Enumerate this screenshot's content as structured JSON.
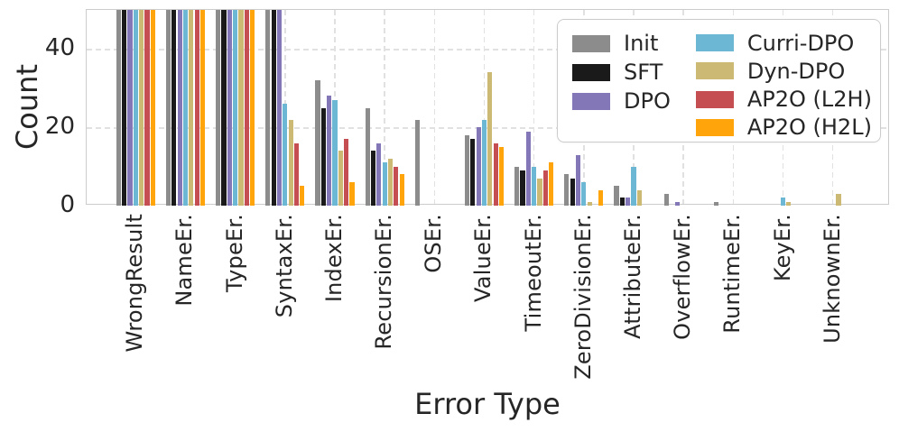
{
  "chart_data": {
    "type": "bar",
    "title": "",
    "xlabel": "Error Type",
    "ylabel": "Count",
    "ylim": [
      0,
      50
    ],
    "yticks": [
      0,
      20,
      40
    ],
    "grid": "dashed gray horizontal at yticks and vertical at each category center",
    "legend_position": "upper right inside plot, two columns",
    "categories": [
      "WrongResult",
      "NameEr.",
      "TypeEr.",
      "SyntaxEr.",
      "IndexEr.",
      "RecursionEr.",
      "OSEr.",
      "ValueEr.",
      "TimeoutEr.",
      "ZeroDivisionEr.",
      "AttributeEr.",
      "OverflowEr.",
      "RuntimeEr.",
      "KeyEr.",
      "UnknownEr."
    ],
    "clipping": "bars with value 50 are clipped at the top of the axes (true value >= 50)",
    "series": [
      {
        "name": "Init",
        "color": "#8c8c8c",
        "values": [
          50,
          50,
          50,
          50,
          32,
          25,
          22,
          18,
          10,
          8,
          5,
          3,
          1,
          0,
          0
        ]
      },
      {
        "name": "SFT",
        "color": "#1a1a1a",
        "values": [
          50,
          50,
          50,
          50,
          25,
          14,
          0,
          17,
          9,
          7,
          2,
          0,
          0,
          0,
          0
        ]
      },
      {
        "name": "DPO",
        "color": "#8377b8",
        "values": [
          50,
          50,
          50,
          50,
          28,
          16,
          0,
          20,
          19,
          13,
          2,
          1,
          0,
          0,
          0
        ]
      },
      {
        "name": "Curri-DPO",
        "color": "#6cb8d4",
        "values": [
          50,
          50,
          50,
          26,
          27,
          11,
          0,
          22,
          10,
          6,
          10,
          0,
          0,
          2,
          0
        ]
      },
      {
        "name": "Dyn-DPO",
        "color": "#ccb974",
        "values": [
          50,
          50,
          50,
          22,
          14,
          12,
          0,
          34,
          7,
          1,
          4,
          0,
          0,
          1,
          3
        ]
      },
      {
        "name": "AP2O (L2H)",
        "color": "#c44e52",
        "values": [
          50,
          50,
          50,
          16,
          17,
          10,
          0,
          16,
          9,
          0,
          0,
          0,
          0,
          0,
          0
        ]
      },
      {
        "name": "AP2O (H2L)",
        "color": "#ffa40a",
        "values": [
          50,
          50,
          50,
          5,
          6,
          8,
          0,
          15,
          11,
          4,
          0,
          0,
          0,
          0,
          0
        ]
      }
    ],
    "legend_columns": [
      [
        "Init",
        "SFT",
        "DPO"
      ],
      [
        "Curri-DPO",
        "Dyn-DPO",
        "AP2O (L2H)",
        "AP2O (H2L)"
      ]
    ]
  }
}
